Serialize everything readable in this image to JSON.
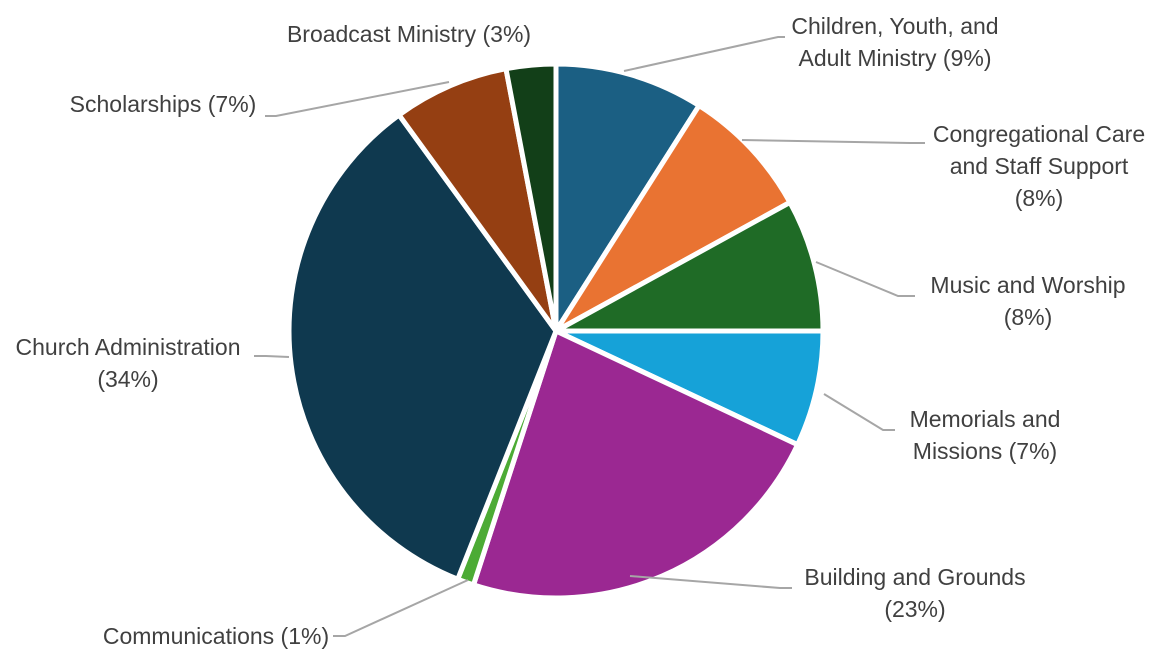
{
  "chart_data": {
    "type": "pie",
    "title": "",
    "slices": [
      {
        "label": "Children, Youth, and Adult Ministry (9%)",
        "lines": [
          "Children, Youth, and",
          "Adult Ministry (9%)"
        ],
        "value": 9,
        "color": "#1b5f83"
      },
      {
        "label": "Congregational Care and Staff Support (8%)",
        "lines": [
          "Congregational Care",
          "and Staff Support",
          "(8%)"
        ],
        "value": 8,
        "color": "#e97332"
      },
      {
        "label": "Music and Worship (8%)",
        "lines": [
          "Music and Worship",
          "(8%)"
        ],
        "value": 8,
        "color": "#1f6b26"
      },
      {
        "label": "Memorials and Missions (7%)",
        "lines": [
          "Memorials and",
          "Missions (7%)"
        ],
        "value": 7,
        "color": "#16a2d8"
      },
      {
        "label": "Building and Grounds (23%)",
        "lines": [
          "Building and Grounds",
          "(23%)"
        ],
        "value": 23,
        "color": "#9b2892"
      },
      {
        "label": "Communications (1%)",
        "lines": [
          "Communications (1%)"
        ],
        "value": 1,
        "color": "#4cab35"
      },
      {
        "label": "Church Administration (34%)",
        "lines": [
          "Church Administration",
          "(34%)"
        ],
        "value": 34,
        "color": "#0f394f"
      },
      {
        "label": "Scholarships (7%)",
        "lines": [
          "Scholarships (7%)"
        ],
        "value": 7,
        "color": "#953f12"
      },
      {
        "label": "Broadcast Ministry (3%)",
        "lines": [
          "Broadcast Ministry  (3%)"
        ],
        "value": 3,
        "color": "#123f18"
      }
    ],
    "legend": "none",
    "start_angle": "12 o'clock",
    "direction": "clockwise"
  }
}
